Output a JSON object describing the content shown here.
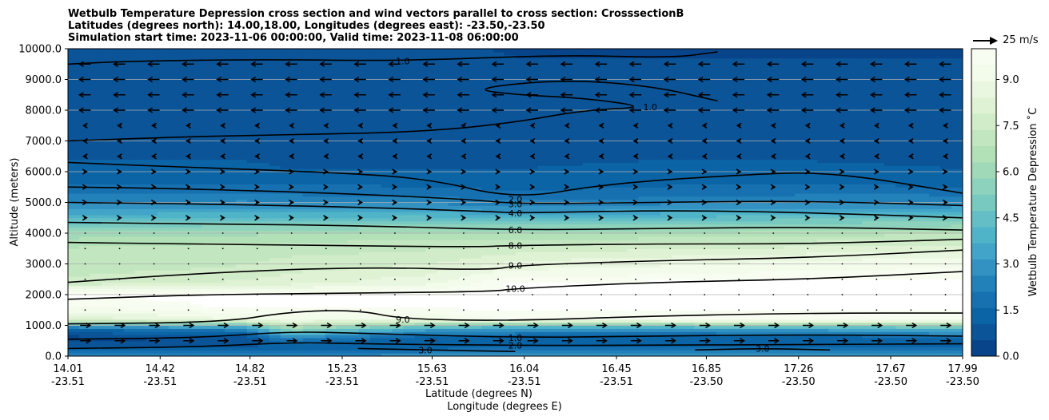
{
  "title": {
    "line1": "Wetbulb Temperature Depression cross section and wind vectors parallel to cross section: CrosssectionB",
    "line2": "Latitudes (degrees north): 14.00,18.00, Longitudes (degrees east): -23.50,-23.50",
    "line3": "Simulation start time: 2023-11-06 00:00:00, Valid time: 2023-11-08 06:00:00"
  },
  "reference_vector": {
    "label": "25 m/s"
  },
  "chart_data": {
    "type": "heatmap",
    "variable": "Wetbulb Temperature Depression",
    "ylabel": "Altitude (meters)",
    "xlabel_lat": "Latitude (degrees N)",
    "xlabel_lon": "Longitude (degrees E)",
    "ylim": [
      0,
      10000
    ],
    "yticks": [
      "0.0",
      "1000.0",
      "2000.0",
      "3000.0",
      "4000.0",
      "5000.0",
      "6000.0",
      "7000.0",
      "8000.0",
      "9000.0",
      "10000.0"
    ],
    "xlim": [
      14.01,
      17.99
    ],
    "xticks": [
      {
        "lat": "14.01",
        "lon": "-23.51",
        "pos": 14.01
      },
      {
        "lat": "14.42",
        "lon": "-23.51",
        "pos": 14.42
      },
      {
        "lat": "14.82",
        "lon": "-23.51",
        "pos": 14.82
      },
      {
        "lat": "15.23",
        "lon": "-23.51",
        "pos": 15.23
      },
      {
        "lat": "15.63",
        "lon": "-23.51",
        "pos": 15.63
      },
      {
        "lat": "16.04",
        "lon": "-23.51",
        "pos": 16.04
      },
      {
        "lat": "16.45",
        "lon": "-23.51",
        "pos": 16.45
      },
      {
        "lat": "16.85",
        "lon": "-23.50",
        "pos": 16.85
      },
      {
        "lat": "17.26",
        "lon": "-23.50",
        "pos": 17.26
      },
      {
        "lat": "17.67",
        "lon": "-23.50",
        "pos": 17.67
      },
      {
        "lat": "17.99",
        "lon": "-23.50",
        "pos": 17.99
      }
    ],
    "colorbar": {
      "label": "Wetbulb Temperature Depression ˚C",
      "range": [
        0,
        10
      ],
      "ticks": [
        "0.0",
        "1.5",
        "3.0",
        "4.5",
        "6.0",
        "7.5",
        "9.0"
      ],
      "colors": [
        "#08448a",
        "#0a5497",
        "#0b64a5",
        "#1771b0",
        "#2381ba",
        "#3392c2",
        "#41a4c8",
        "#50b4c9",
        "#63bfc5",
        "#78c9c0",
        "#8dd2bc",
        "#a0d9b8",
        "#b2e0b7",
        "#c2e6bf",
        "#d1ecc9",
        "#dff2d3",
        "#eaf7e0",
        "#f3fbea",
        "#f8fdf2"
      ]
    },
    "profile_heights": [
      0,
      300,
      600,
      900,
      1200,
      1600,
      2000,
      2400,
      2800,
      3200,
      3600,
      4000,
      4400,
      4800,
      5200,
      5600,
      6000,
      6500,
      7000,
      8000,
      9000,
      10000
    ],
    "profiles": [
      {
        "x": 14.01,
        "values": [
          2.5,
          1.0,
          0.3,
          1.5,
          8.0,
          9.5,
          10.0,
          7.5,
          7.2,
          7.0,
          6.8,
          6.0,
          4.5,
          3.0,
          2.2,
          1.5,
          1.2,
          1.0,
          0.9,
          0.8,
          0.7,
          0.6
        ]
      },
      {
        "x": 14.8,
        "values": [
          2.5,
          1.0,
          0.6,
          2.5,
          9.0,
          10.0,
          10.0,
          8.0,
          7.5,
          7.2,
          7.0,
          6.2,
          4.8,
          3.2,
          2.3,
          1.6,
          1.2,
          1.0,
          0.9,
          0.8,
          0.7,
          0.6
        ]
      },
      {
        "x": 15.0,
        "values": [
          2.8,
          1.0,
          2.5,
          6.0,
          9.0,
          10.0,
          10.0,
          8.2,
          7.8,
          7.4,
          7.1,
          6.3,
          4.8,
          3.1,
          2.2,
          1.5,
          1.1,
          0.9,
          0.8,
          0.8,
          0.7,
          0.6
        ]
      },
      {
        "x": 15.6,
        "values": [
          3.0,
          1.2,
          1.0,
          3.5,
          9.0,
          10.0,
          10.0,
          8.8,
          8.2,
          7.6,
          7.2,
          6.4,
          4.9,
          3.1,
          2.1,
          1.5,
          1.1,
          0.9,
          0.8,
          0.7,
          0.7,
          0.6
        ]
      },
      {
        "x": 16.0,
        "values": [
          3.0,
          1.5,
          1.2,
          3.0,
          9.5,
          10.0,
          10.0,
          10.0,
          9.0,
          8.2,
          7.4,
          6.3,
          4.7,
          2.8,
          1.8,
          1.3,
          1.1,
          0.9,
          0.8,
          0.6,
          0.6,
          0.5
        ]
      },
      {
        "x": 16.6,
        "values": [
          3.0,
          1.5,
          1.0,
          3.0,
          9.5,
          10.0,
          10.0,
          10.0,
          9.2,
          8.5,
          7.6,
          6.4,
          4.8,
          3.0,
          2.0,
          1.5,
          1.2,
          1.0,
          0.9,
          0.7,
          0.6,
          0.5
        ]
      },
      {
        "x": 17.3,
        "values": [
          3.0,
          1.5,
          1.0,
          3.5,
          9.5,
          10.0,
          10.0,
          10.0,
          9.5,
          8.8,
          7.8,
          6.6,
          5.0,
          3.2,
          2.2,
          1.6,
          1.2,
          1.0,
          0.9,
          0.7,
          0.6,
          0.5
        ]
      },
      {
        "x": 17.99,
        "values": [
          3.0,
          1.5,
          1.5,
          4.0,
          9.5,
          10.0,
          10.0,
          10.0,
          9.6,
          9.0,
          8.0,
          6.8,
          5.2,
          3.3,
          2.2,
          1.4,
          1.1,
          0.9,
          0.8,
          0.7,
          0.6,
          0.5
        ]
      }
    ],
    "contours": [
      {
        "label": "1.0",
        "points": [
          [
            14.01,
            7000
          ],
          [
            14.6,
            7150
          ],
          [
            15.0,
            7200
          ],
          [
            15.6,
            7300
          ],
          [
            16.0,
            7600
          ],
          [
            16.3,
            8000
          ],
          [
            16.6,
            8100
          ],
          [
            16.3,
            8400
          ],
          [
            16.0,
            8500
          ],
          [
            15.8,
            8700
          ],
          [
            16.2,
            9000
          ],
          [
            16.6,
            8800
          ],
          [
            16.9,
            8300
          ]
        ]
      },
      {
        "label": "1.0",
        "points": [
          [
            14.01,
            9500
          ],
          [
            14.3,
            9600
          ],
          [
            14.9,
            9650
          ],
          [
            15.5,
            9600
          ],
          [
            16.2,
            9800
          ],
          [
            16.7,
            9700
          ],
          [
            16.9,
            9900
          ]
        ]
      },
      {
        "label": "2.0",
        "points": [
          [
            14.01,
            6300
          ],
          [
            14.5,
            6150
          ],
          [
            15.1,
            6000
          ],
          [
            15.6,
            5800
          ],
          [
            16.0,
            5100
          ],
          [
            16.4,
            5600
          ],
          [
            17.0,
            5900
          ],
          [
            17.4,
            6000
          ],
          [
            17.99,
            5300
          ]
        ]
      },
      {
        "label": "3.0",
        "points": [
          [
            14.01,
            5500
          ],
          [
            14.5,
            5450
          ],
          [
            15.2,
            5300
          ],
          [
            15.8,
            5100
          ],
          [
            16.0,
            4950
          ],
          [
            16.6,
            5000
          ],
          [
            17.3,
            5050
          ],
          [
            17.99,
            4900
          ]
        ]
      },
      {
        "label": "4.0",
        "points": [
          [
            14.01,
            5000
          ],
          [
            14.6,
            4950
          ],
          [
            15.3,
            4850
          ],
          [
            15.9,
            4700
          ],
          [
            16.0,
            4650
          ],
          [
            16.7,
            4750
          ],
          [
            17.4,
            4650
          ],
          [
            17.99,
            4500
          ]
        ]
      },
      {
        "label": "6.0",
        "points": [
          [
            14.01,
            4350
          ],
          [
            14.6,
            4300
          ],
          [
            15.3,
            4250
          ],
          [
            16.0,
            4100
          ],
          [
            16.6,
            4150
          ],
          [
            17.3,
            4200
          ],
          [
            17.99,
            4100
          ]
        ]
      },
      {
        "label": "8.0",
        "points": [
          [
            14.01,
            3700
          ],
          [
            14.5,
            3650
          ],
          [
            15.2,
            3600
          ],
          [
            15.8,
            3550
          ],
          [
            16.0,
            3600
          ],
          [
            16.6,
            3650
          ],
          [
            17.3,
            3650
          ],
          [
            17.99,
            3800
          ]
        ]
      },
      {
        "label": "9.0",
        "points": [
          [
            14.01,
            2400
          ],
          [
            14.6,
            2700
          ],
          [
            15.3,
            2900
          ],
          [
            15.9,
            2800
          ],
          [
            16.0,
            2950
          ],
          [
            16.6,
            3100
          ],
          [
            17.3,
            3200
          ],
          [
            17.99,
            3450
          ]
        ]
      },
      {
        "label": "10.0",
        "points": [
          [
            14.01,
            1850
          ],
          [
            14.6,
            2000
          ],
          [
            15.3,
            2050
          ],
          [
            15.9,
            2100
          ],
          [
            16.0,
            2200
          ],
          [
            16.6,
            2400
          ],
          [
            17.3,
            2500
          ],
          [
            17.99,
            2750
          ]
        ]
      },
      {
        "label": "9.0",
        "points": [
          [
            14.01,
            1050
          ],
          [
            14.7,
            1100
          ],
          [
            15.0,
            1450
          ],
          [
            15.3,
            1500
          ],
          [
            15.5,
            1200
          ],
          [
            16.0,
            1150
          ],
          [
            16.6,
            1300
          ],
          [
            17.3,
            1400
          ],
          [
            17.99,
            1400
          ]
        ]
      },
      {
        "label": "2.0",
        "points": [
          [
            14.01,
            250
          ],
          [
            14.6,
            300
          ],
          [
            15.0,
            450
          ],
          [
            15.3,
            400
          ],
          [
            16.0,
            350
          ],
          [
            16.6,
            350
          ],
          [
            17.3,
            380
          ],
          [
            17.99,
            400
          ]
        ]
      },
      {
        "label": "3.0",
        "points": [
          [
            15.3,
            250
          ],
          [
            15.6,
            200
          ],
          [
            16.0,
            150
          ]
        ]
      },
      {
        "label": "3.0",
        "points": [
          [
            16.8,
            200
          ],
          [
            17.1,
            250
          ],
          [
            17.4,
            200
          ]
        ]
      },
      {
        "label": "1.0",
        "points": [
          [
            14.01,
            550
          ],
          [
            14.6,
            600
          ],
          [
            15.0,
            800
          ],
          [
            15.3,
            750
          ],
          [
            16.0,
            600
          ],
          [
            16.6,
            650
          ],
          [
            17.3,
            700
          ],
          [
            17.99,
            650
          ]
        ]
      }
    ]
  }
}
